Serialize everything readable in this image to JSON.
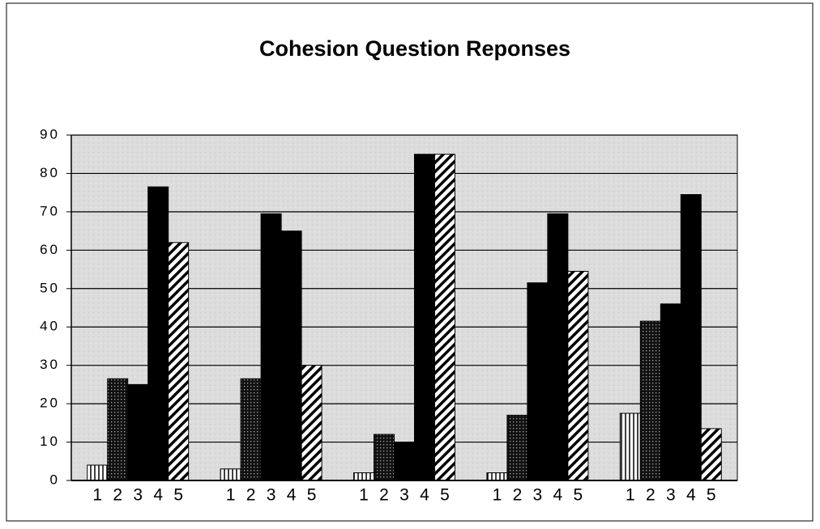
{
  "chart_data": {
    "type": "bar",
    "title": "Cohesion Question Reponses",
    "categories": [
      null,
      null,
      null,
      null,
      null
    ],
    "series": [
      {
        "name": "1",
        "color": "#ffffff",
        "pattern": "vertical",
        "values": [
          4,
          3,
          2,
          2,
          17.5
        ]
      },
      {
        "name": "2",
        "color": "#222222",
        "pattern": "dots",
        "values": [
          26.5,
          26.5,
          12,
          17,
          41.5
        ]
      },
      {
        "name": "3",
        "color": "#000000",
        "pattern": "solid",
        "values": [
          25,
          69.5,
          10,
          51.5,
          46
        ]
      },
      {
        "name": "4",
        "color": "#000000",
        "pattern": "solid",
        "values": [
          76.5,
          65,
          85,
          69.5,
          74.5
        ]
      },
      {
        "name": "5",
        "color": "#ffffff",
        "pattern": "diagonal",
        "values": [
          62,
          30,
          85,
          54.5,
          13.5
        ]
      }
    ],
    "ylim": [
      0,
      90
    ],
    "yticks": [
      0,
      10,
      20,
      30,
      40,
      50,
      60,
      70,
      80,
      90
    ],
    "grid": true
  }
}
